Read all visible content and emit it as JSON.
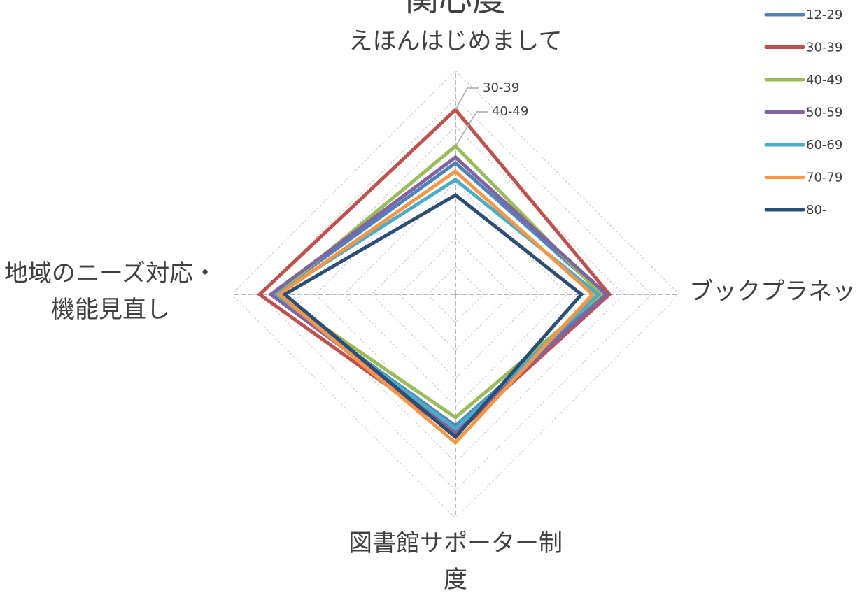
{
  "chart_data": {
    "type": "radar",
    "title": "関心度",
    "categories": [
      "えほんはじめまして",
      "ブックプラネット",
      "図書館サポーター制度",
      "地域のニーズ対応・機能見直し"
    ],
    "rlim": [
      0,
      8
    ],
    "rticks": [
      1,
      2,
      3,
      4,
      5,
      6,
      7,
      8
    ],
    "grid": true,
    "legend": "top-right",
    "series": [
      {
        "name": "12-29",
        "color": "#4f81bd",
        "values": [
          4.7,
          5.3,
          4.7,
          6.5
        ]
      },
      {
        "name": "30-39",
        "color": "#c0504d",
        "values": [
          6.6,
          5.5,
          5.0,
          7.0
        ]
      },
      {
        "name": "40-49",
        "color": "#9bbb59",
        "values": [
          5.3,
          5.2,
          4.4,
          6.4
        ]
      },
      {
        "name": "50-59",
        "color": "#8064a2",
        "values": [
          4.9,
          5.4,
          4.9,
          6.6
        ]
      },
      {
        "name": "60-69",
        "color": "#4bacc6",
        "values": [
          4.1,
          5.1,
          4.8,
          6.4
        ]
      },
      {
        "name": "70-79",
        "color": "#f79646",
        "values": [
          4.4,
          4.9,
          5.3,
          6.3
        ]
      },
      {
        "name": "80-",
        "color": "#2c4d75",
        "values": [
          3.55,
          4.5,
          5.1,
          6.1
        ]
      }
    ]
  }
}
